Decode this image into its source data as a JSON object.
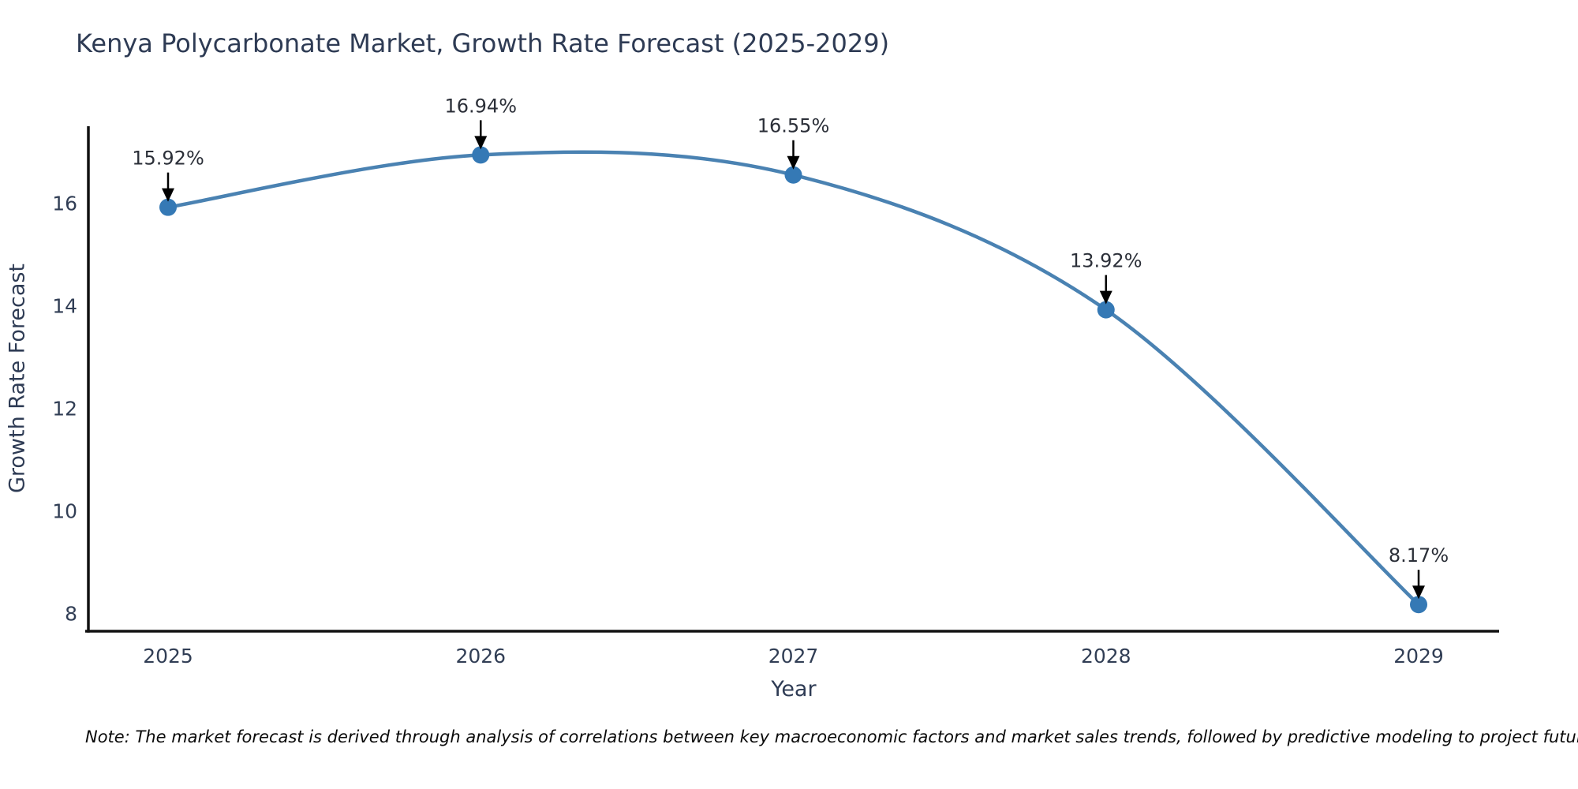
{
  "page": {
    "background": "#ffffff"
  },
  "chart_data": {
    "type": "line",
    "title": "Kenya Polycarbonate Market, Growth Rate Forecast (2025-2029)",
    "xlabel": "Year",
    "ylabel": "Growth Rate Forecast",
    "categories": [
      "2025",
      "2026",
      "2027",
      "2028",
      "2029"
    ],
    "series": [
      {
        "name": "Growth Rate Forecast",
        "values": [
          15.92,
          16.94,
          16.55,
          13.92,
          8.17
        ],
        "point_labels": [
          "15.92%",
          "16.94%",
          "16.55%",
          "13.92%",
          "8.17%"
        ]
      }
    ],
    "yticks": [
      8,
      10,
      12,
      14,
      16
    ],
    "ylim": [
      7.65,
      17.5
    ],
    "grid": false,
    "legend_position": "none",
    "line_color": "#4a82b2",
    "marker_color": "#3579b5",
    "arrow_color": "#000000",
    "text_color": "#313e55",
    "axis_color": "#111111"
  },
  "note": {
    "text": "Note: The market forecast is derived through analysis of correlations between key macroeconomic factors and market sales trends, followed by predictive modeling to project future sales"
  }
}
